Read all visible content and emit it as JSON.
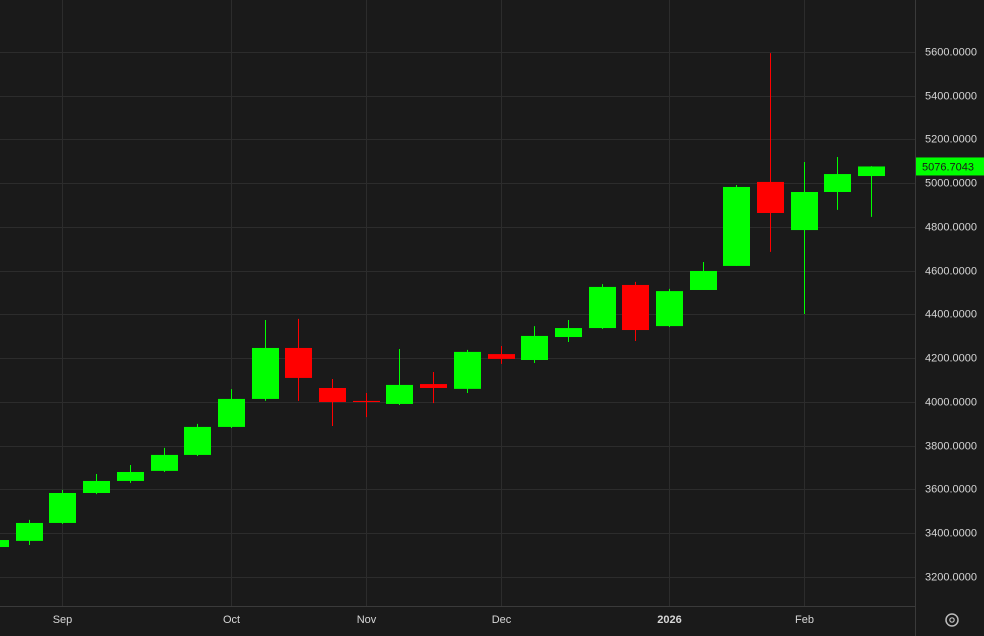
{
  "chart_data": {
    "type": "candlestick",
    "categories": [
      null,
      null,
      null,
      null,
      null,
      null,
      null,
      null,
      null,
      null,
      null,
      null,
      null,
      null,
      null,
      null,
      null,
      null,
      null,
      null,
      null,
      null,
      null,
      null,
      null,
      null,
      null
    ],
    "open": [
      3337,
      3365,
      3447,
      3584,
      3639,
      3685,
      3758,
      3886,
      4014,
      4247,
      4064,
      4005,
      3991,
      4082,
      4060,
      4219,
      4192,
      4297,
      4338,
      4535,
      4347,
      4512,
      4622,
      5006,
      4786,
      4960,
      5033
    ],
    "high": [
      3369,
      3461,
      3598,
      3671,
      3712,
      3790,
      3900,
      4059,
      4375,
      4380,
      4105,
      4041,
      4242,
      4137,
      4238,
      4256,
      4347,
      4375,
      4539,
      4549,
      4517,
      4640,
      4992,
      5595,
      5097,
      5120,
      5078
    ],
    "low": [
      3337,
      3346,
      3443,
      3579,
      3630,
      3680,
      3753,
      3881,
      4005,
      4005,
      3890,
      3931,
      3986,
      3995,
      4041,
      4174,
      4178,
      4274,
      4334,
      4279,
      4343,
      4512,
      4622,
      4686,
      4402,
      4878,
      4846
    ],
    "close": [
      3369,
      3447,
      3584,
      3639,
      3680,
      3758,
      3886,
      4014,
      4247,
      4110,
      4000,
      4000,
      4078,
      4064,
      4229,
      4197,
      4302,
      4338,
      4526,
      4329,
      4507,
      4599,
      4983,
      4864,
      4960,
      5042,
      5076.7043
    ],
    "up_color": "#00ff00",
    "down_color": "#ff0000",
    "xlim": [
      0.148,
      27.3
    ],
    "xticks": [
      {
        "value": 2,
        "label": "Sep"
      },
      {
        "value": 7,
        "label": "Oct"
      },
      {
        "value": 11,
        "label": "Nov"
      },
      {
        "value": 15,
        "label": "Dec"
      },
      {
        "value": 20,
        "label": "2026"
      },
      {
        "value": 24,
        "label": "Feb"
      }
    ],
    "ylim": [
      3067.4,
      5837.7
    ],
    "yticks": [
      {
        "value": 3200,
        "label": "3200.0000"
      },
      {
        "value": 3400,
        "label": "3400.0000"
      },
      {
        "value": 3600,
        "label": "3600.0000"
      },
      {
        "value": 3800,
        "label": "3800.0000"
      },
      {
        "value": 4000,
        "label": "4000.0000"
      },
      {
        "value": 4200,
        "label": "4200.0000"
      },
      {
        "value": 4400,
        "label": "4400.0000"
      },
      {
        "value": 4600,
        "label": "4600.0000"
      },
      {
        "value": 4800,
        "label": "4800.0000"
      },
      {
        "value": 5000,
        "label": "5000.0000"
      },
      {
        "value": 5200,
        "label": "5200.0000"
      },
      {
        "value": 5400,
        "label": "5400.0000"
      },
      {
        "value": 5600,
        "label": "5600.0000"
      }
    ],
    "grid": true,
    "last_price": 5076.7043
  }
}
